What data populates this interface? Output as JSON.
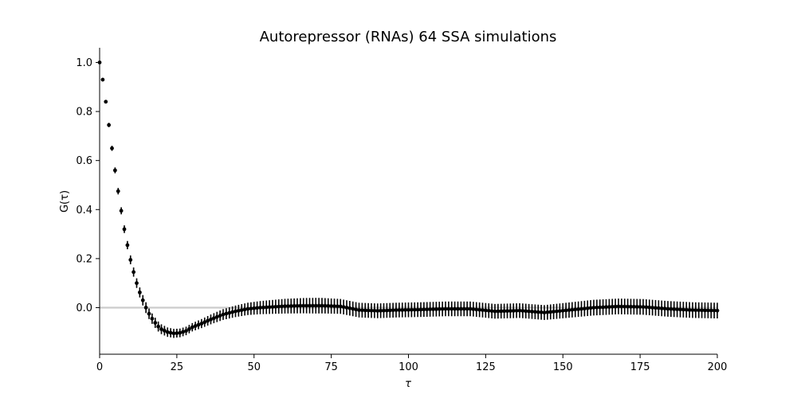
{
  "chart_data": {
    "type": "scatter",
    "title": "Autorepressor (RNAs) 64 SSA simulations",
    "xlabel": "τ",
    "ylabel": "G(τ)",
    "xlim": [
      0,
      200
    ],
    "ylim": [
      -0.19,
      1.06
    ],
    "xticks": [
      0,
      25,
      50,
      75,
      100,
      125,
      150,
      175,
      200
    ],
    "xtick_labels": [
      "0",
      "25",
      "50",
      "75",
      "100",
      "125",
      "150",
      "175",
      "200"
    ],
    "yticks": [
      0.0,
      0.2,
      0.4,
      0.6,
      0.8,
      1.0
    ],
    "ytick_labels": [
      "0.0",
      "0.2",
      "0.4",
      "0.6",
      "0.8",
      "1.0"
    ],
    "reference_line": {
      "y": 0.0,
      "color": "#cccccc"
    },
    "grid": false,
    "series": [
      {
        "marker_color": "#000000",
        "error_color": "#000000",
        "anchors_x": [
          0,
          1,
          2,
          3,
          4,
          5,
          6,
          7,
          8,
          9,
          10,
          11,
          12,
          13,
          14,
          15,
          16,
          17,
          18,
          19,
          20,
          22,
          24,
          26,
          28,
          30,
          33,
          36,
          40,
          44,
          48,
          52,
          56,
          60,
          66,
          72,
          78,
          84,
          90,
          96,
          104,
          112,
          120,
          128,
          136,
          144,
          152,
          160,
          168,
          176,
          184,
          192,
          200
        ],
        "anchors_y": [
          1.0,
          0.93,
          0.84,
          0.745,
          0.65,
          0.56,
          0.475,
          0.395,
          0.32,
          0.255,
          0.195,
          0.145,
          0.1,
          0.062,
          0.03,
          0.0,
          -0.025,
          -0.045,
          -0.062,
          -0.077,
          -0.088,
          -0.1,
          -0.105,
          -0.103,
          -0.095,
          -0.08,
          -0.065,
          -0.048,
          -0.028,
          -0.015,
          -0.005,
          0.0,
          0.003,
          0.006,
          0.008,
          0.008,
          0.005,
          -0.01,
          -0.013,
          -0.01,
          -0.008,
          -0.005,
          -0.005,
          -0.015,
          -0.012,
          -0.02,
          -0.01,
          0.0,
          0.005,
          0.003,
          -0.005,
          -0.01,
          -0.012
        ],
        "err_anchors_x": [
          0,
          5,
          10,
          15,
          20,
          25,
          30,
          40,
          50,
          60,
          70,
          80,
          100,
          120,
          140,
          160,
          180,
          200
        ],
        "err_anchors": [
          0.004,
          0.012,
          0.018,
          0.022,
          0.02,
          0.018,
          0.017,
          0.022,
          0.026,
          0.03,
          0.032,
          0.03,
          0.03,
          0.03,
          0.03,
          0.032,
          0.032,
          0.032
        ],
        "step": 1
      }
    ]
  }
}
